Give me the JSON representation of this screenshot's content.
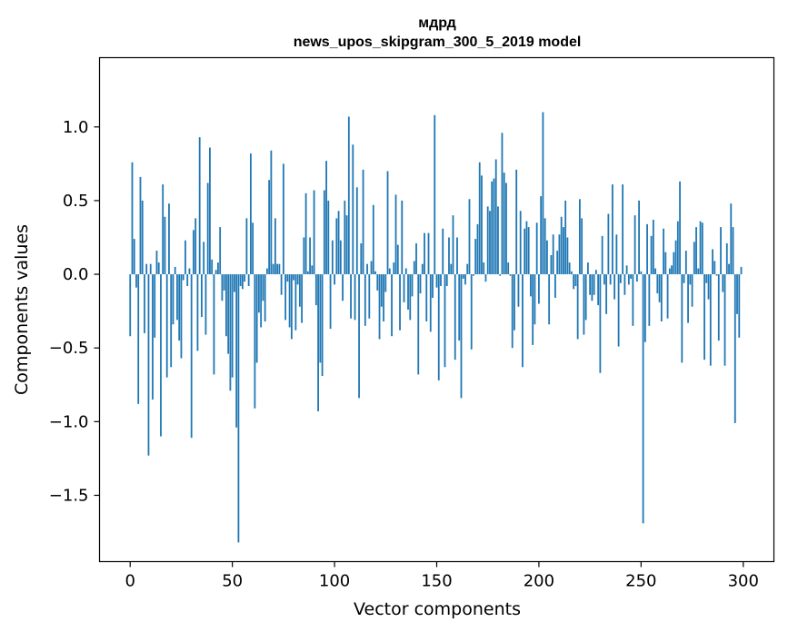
{
  "chart_data": {
    "type": "bar",
    "title": "мдрд\nnews_upos_skipgram_300_5_2019 model",
    "title_lines": [
      "мдрд",
      "news_upos_skipgram_300_5_2019 model"
    ],
    "xlabel": "Vector components",
    "ylabel": "Components values",
    "xlim": [
      -15,
      315
    ],
    "ylim": [
      -1.95,
      1.47
    ],
    "xticks": [
      0,
      50,
      100,
      150,
      200,
      250,
      300
    ],
    "xtick_labels": [
      "0",
      "50",
      "100",
      "150",
      "200",
      "250",
      "300"
    ],
    "yticks": [
      -1.5,
      -1.0,
      -0.5,
      0.0,
      0.5,
      1.0
    ],
    "ytick_labels": [
      "−1.5",
      "−1.0",
      "−0.5",
      "0.0",
      "0.5",
      "1.0"
    ],
    "grid": false,
    "bar_color": "#1f77b4",
    "x_start": 0,
    "values": [
      -0.42,
      0.76,
      0.24,
      -0.09,
      -0.88,
      0.66,
      0.5,
      -0.4,
      0.07,
      -1.23,
      0.07,
      -0.85,
      -0.43,
      0.16,
      0.08,
      -1.1,
      0.61,
      0.39,
      -0.7,
      0.48,
      -0.63,
      -0.34,
      0.05,
      -0.31,
      -0.45,
      -0.57,
      -0.04,
      0.23,
      -0.08,
      0.04,
      -1.11,
      0.3,
      0.38,
      -0.52,
      0.93,
      -0.29,
      0.22,
      -0.41,
      0.62,
      0.86,
      0.1,
      -0.68,
      0.03,
      0.08,
      0.32,
      -0.18,
      -0.11,
      -0.42,
      -0.54,
      -0.79,
      -0.7,
      -0.12,
      -1.04,
      -1.82,
      -0.08,
      -0.1,
      -0.05,
      0.38,
      -0.08,
      0.82,
      0.35,
      -0.91,
      -0.6,
      -0.26,
      -0.36,
      -0.18,
      -0.32,
      0.04,
      0.64,
      0.84,
      0.07,
      0.38,
      0.07,
      0.07,
      -0.14,
      0.75,
      -0.31,
      -0.05,
      -0.36,
      -0.44,
      -0.04,
      -0.38,
      -0.07,
      -0.22,
      -0.33,
      0.25,
      0.55,
      0.02,
      0.25,
      0.06,
      0.57,
      -0.21,
      -0.93,
      -0.6,
      -0.69,
      0.57,
      0.77,
      0.5,
      -0.37,
      0.23,
      -0.07,
      0.38,
      0.43,
      0.23,
      -0.18,
      0.5,
      0.4,
      1.07,
      -0.3,
      0.88,
      -0.31,
      0.59,
      -0.84,
      0.21,
      0.71,
      -0.35,
      0.07,
      -0.3,
      0.09,
      0.47,
      0.02,
      -0.11,
      -0.44,
      -0.22,
      -0.32,
      -0.12,
      0.7,
      0.04,
      -0.42,
      0.08,
      0.54,
      0.2,
      -0.38,
      0.5,
      -0.19,
      0.04,
      -0.24,
      -0.31,
      -0.15,
      0.09,
      0.21,
      -0.68,
      -0.13,
      0.07,
      0.28,
      -0.32,
      0.28,
      -0.39,
      -0.16,
      1.08,
      -0.09,
      -0.72,
      -0.08,
      0.31,
      -0.63,
      -0.08,
      0.25,
      0.07,
      0.4,
      -0.58,
      0.25,
      -0.45,
      -0.84,
      -0.03,
      -0.07,
      0.07,
      0.51,
      -0.51,
      -0.01,
      0.24,
      0.34,
      0.76,
      0.67,
      0.08,
      -0.05,
      0.46,
      0.43,
      0.63,
      0.65,
      0.78,
      0.46,
      -0.01,
      0.96,
      0.69,
      0.62,
      0.08,
      -0.01,
      -0.5,
      -0.38,
      0.71,
      -0.22,
      0.43,
      -0.63,
      0.31,
      0.36,
      0.32,
      -0.15,
      -0.48,
      -0.34,
      0.35,
      -0.2,
      0.53,
      1.1,
      0.38,
      0.23,
      -0.34,
      0.13,
      0.27,
      -0.16,
      0.16,
      0.27,
      0.39,
      0.32,
      0.5,
      0.25,
      0.08,
      0.02,
      -0.1,
      -0.08,
      -0.44,
      0.51,
      0.38,
      -0.41,
      -0.31,
      0.08,
      -0.14,
      -0.18,
      -0.14,
      0.03,
      -0.21,
      -0.67,
      0.26,
      -0.07,
      -0.27,
      0.41,
      -0.07,
      0.61,
      -0.17,
      0.27,
      -0.49,
      -0.06,
      0.61,
      -0.14,
      0.06,
      -0.07,
      -0.03,
      -0.35,
      0.4,
      -0.05,
      0.5,
      0.02,
      -1.69,
      -0.46,
      0.34,
      -0.35,
      0.26,
      0.37,
      0.04,
      -0.13,
      -0.19,
      -0.32,
      0.31,
      0.15,
      -0.3,
      0.04,
      0.06,
      0.15,
      0.23,
      0.36,
      0.63,
      -0.6,
      -0.06,
      0.16,
      -0.33,
      -0.07,
      -0.22,
      0.22,
      0.32,
      0.04,
      0.36,
      0.35,
      -0.58,
      -0.06,
      -0.17,
      -0.62,
      0.17,
      0.09,
      -0.01,
      -0.45,
      0.32,
      -0.12,
      -0.62,
      0.21,
      0.07,
      0.48,
      0.32,
      -1.01,
      -0.27,
      -0.43,
      0.05
    ]
  }
}
